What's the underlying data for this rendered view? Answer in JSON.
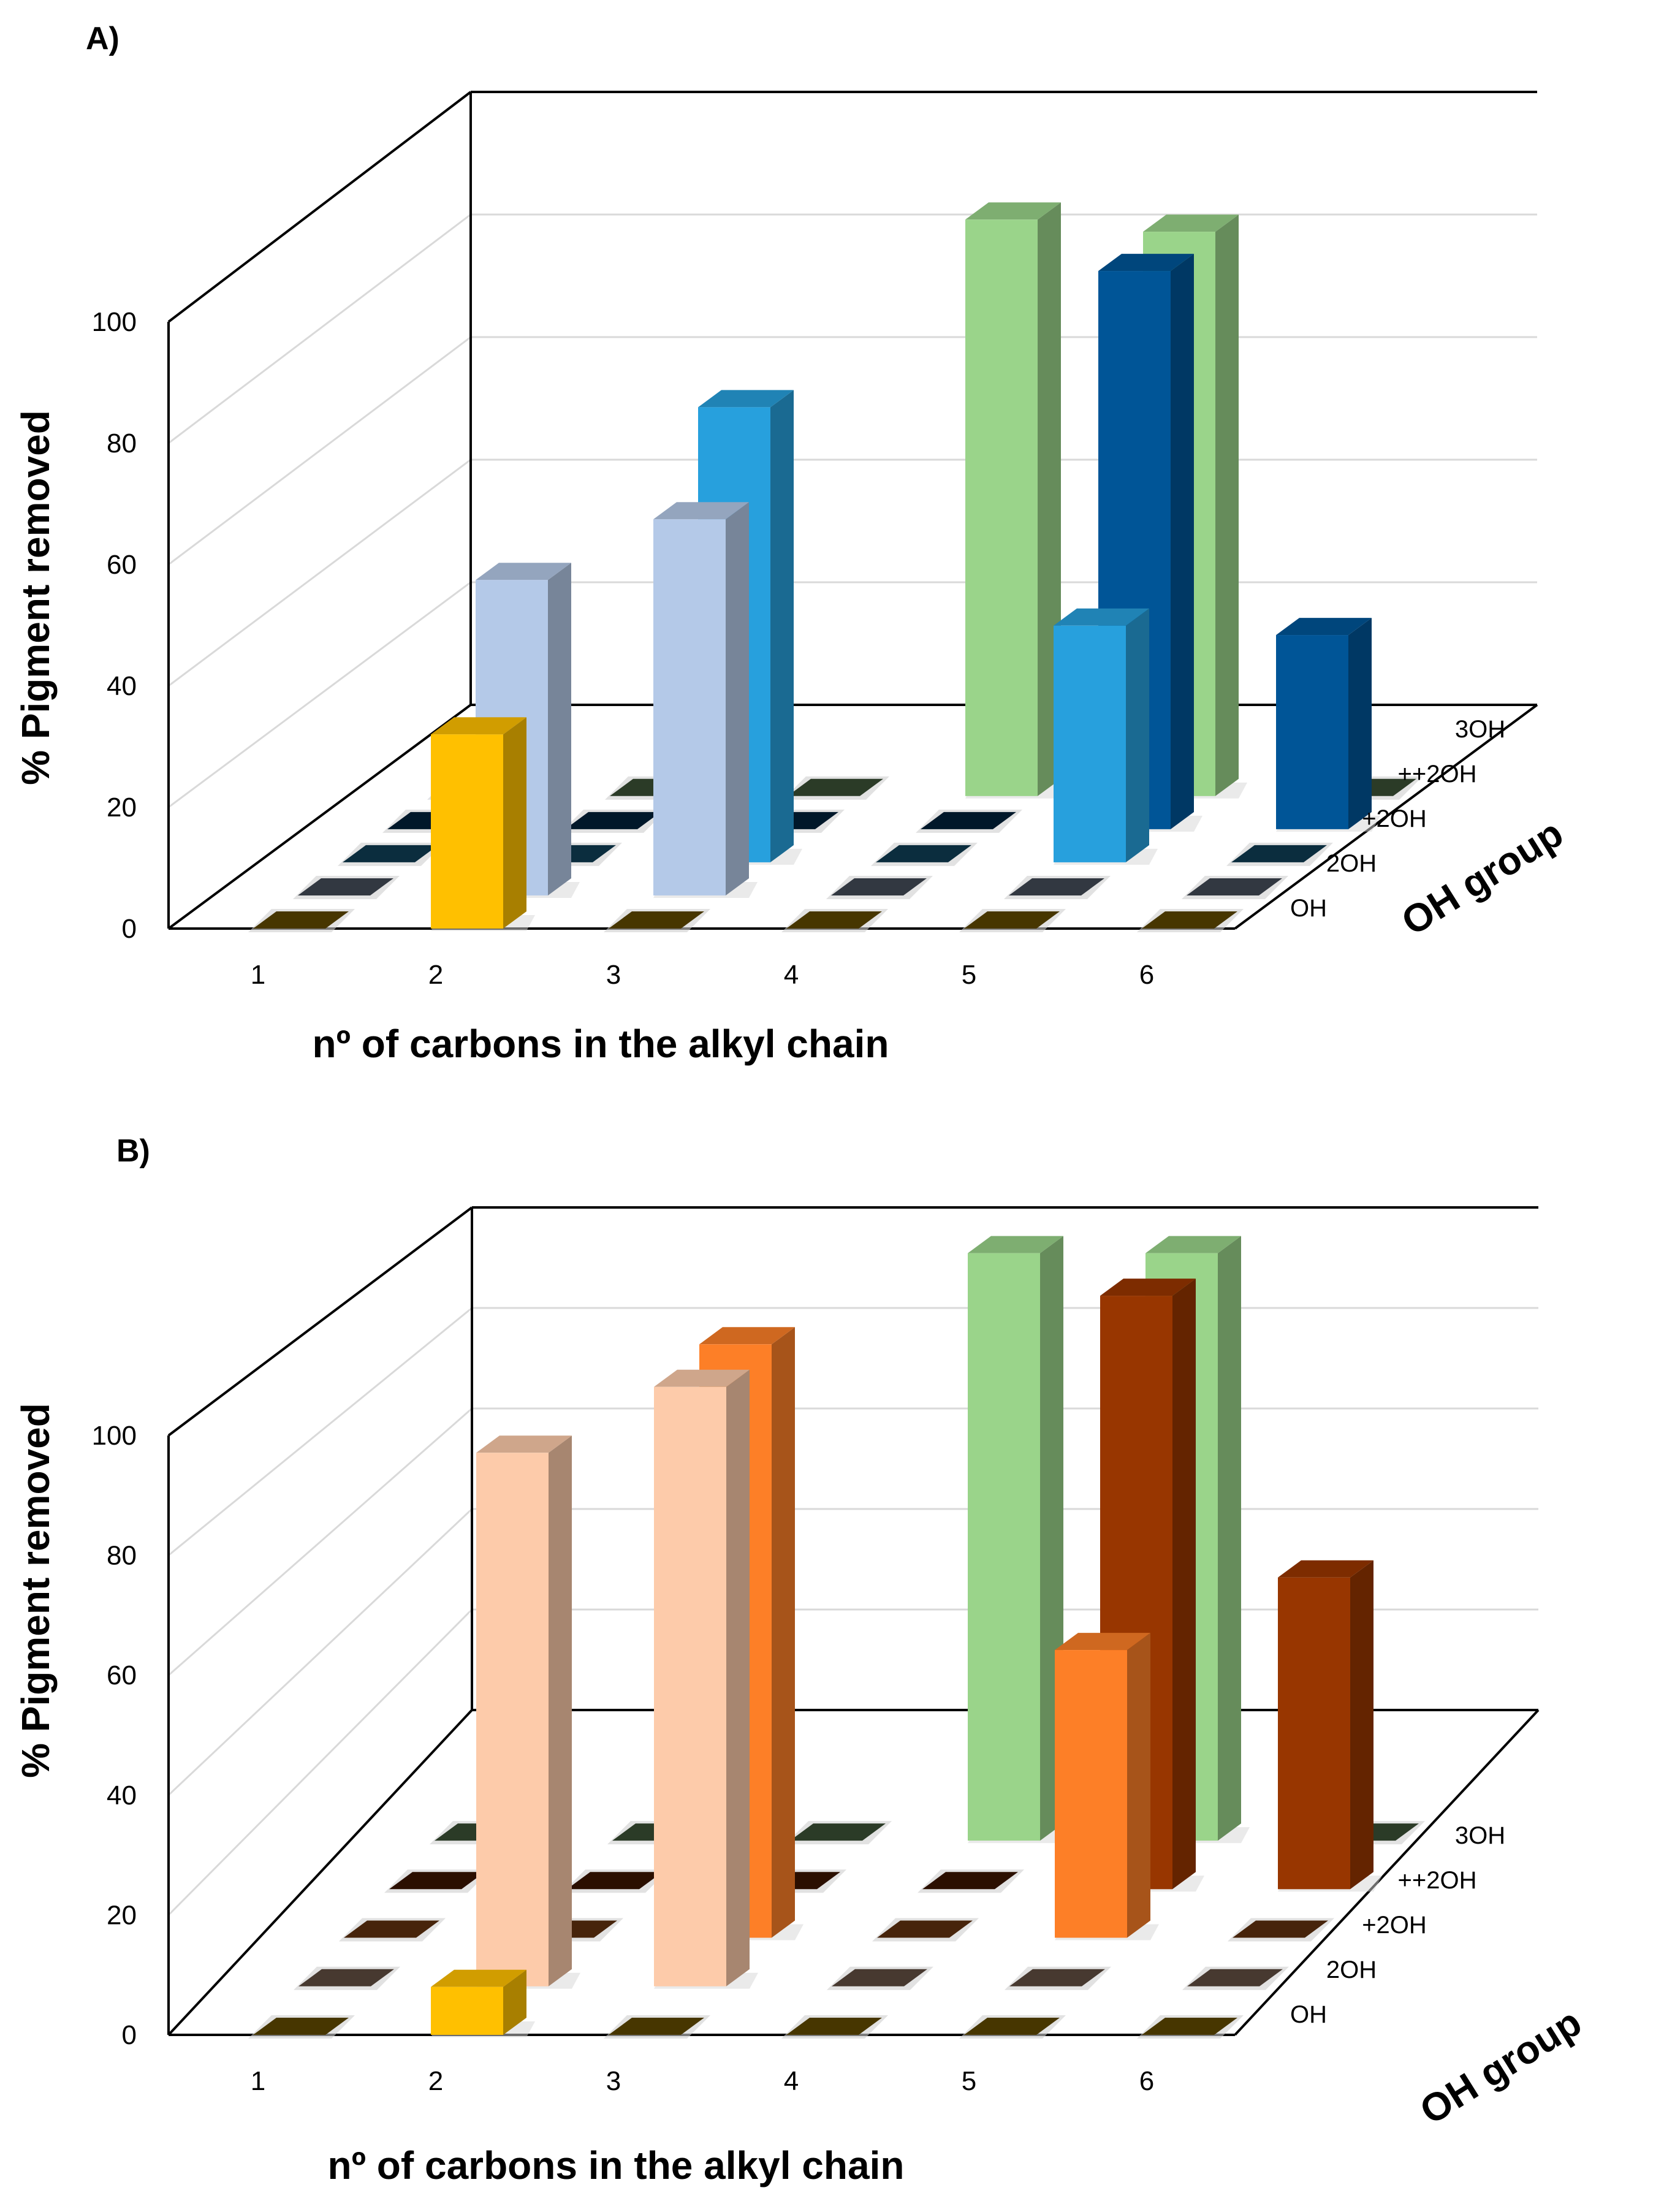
{
  "colors": {
    "OH": "#ffc000",
    "green": "#9ad48a",
    "A": {
      "2OH": "#b4c9e8",
      "+2OH": "#27a0dd",
      "++2OH": "#005597"
    },
    "B": {
      "2OH": "#fdcbaa",
      "+2OH": "#fd7f27",
      "++2OH": "#983600"
    }
  },
  "chart_data": [
    {
      "panel_label": "A)",
      "type": "bar",
      "title": "",
      "xlabel": "nº of carbons in the alkyl chain",
      "ylabel": "% Pigment removed",
      "zlabel": "OH group",
      "categories": [
        "1",
        "2",
        "3",
        "4",
        "5",
        "6"
      ],
      "depth_categories": [
        "OH",
        "2OH",
        "+2OH",
        "++2OH",
        "3OH"
      ],
      "ylim": [
        0,
        100
      ],
      "yticks": [
        "0",
        "20",
        "40",
        "60",
        "80",
        "100"
      ],
      "series": [
        {
          "name": "OH",
          "values": [
            0,
            32,
            0,
            0,
            0,
            0
          ]
        },
        {
          "name": "2OH",
          "values": [
            0,
            52,
            62,
            0,
            0,
            0
          ]
        },
        {
          "name": "+2OH",
          "values": [
            0,
            0,
            75,
            0,
            39,
            0
          ]
        },
        {
          "name": "++2OH",
          "values": [
            0,
            0,
            0,
            0,
            92,
            32
          ]
        },
        {
          "name": "3OH",
          "values": [
            0,
            0,
            0,
            95,
            93,
            0
          ]
        }
      ]
    },
    {
      "panel_label": "B)",
      "type": "bar",
      "title": "",
      "xlabel": "nº of carbons in the alkyl chain",
      "ylabel": "% Pigment removed",
      "zlabel": "OH group",
      "categories": [
        "1",
        "2",
        "3",
        "4",
        "5",
        "6"
      ],
      "depth_categories": [
        "OH",
        "2OH",
        "+2OH",
        "++2OH",
        "3OH"
      ],
      "ylim": [
        0,
        100
      ],
      "yticks": [
        "0",
        "20",
        "40",
        "60",
        "80",
        "100"
      ],
      "series": [
        {
          "name": "OH",
          "values": [
            0,
            8,
            0,
            0,
            0,
            0
          ]
        },
        {
          "name": "2OH",
          "values": [
            0,
            89,
            100,
            0,
            0,
            0
          ]
        },
        {
          "name": "+2OH",
          "values": [
            0,
            0,
            99,
            0,
            48,
            0
          ]
        },
        {
          "name": "++2OH",
          "values": [
            0,
            0,
            0,
            0,
            99,
            52
          ]
        },
        {
          "name": "3OH",
          "values": [
            0,
            0,
            0,
            98,
            98,
            0
          ]
        }
      ]
    }
  ]
}
